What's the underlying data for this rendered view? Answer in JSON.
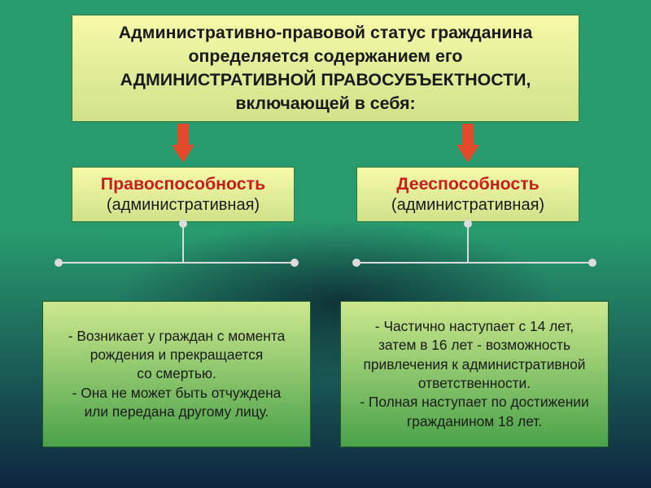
{
  "background": {
    "top_color": "#289a6e",
    "bottom_color": "#0e2640"
  },
  "top_box": {
    "line1": "Административно-правовой статус гражданина",
    "line2": "определяется содержанием его",
    "line3": "АДМИНИСТРАТИВНОЙ  ПРАВОСУБЪЕКТНОСТИ,",
    "line4": "включающей в себя:",
    "bg_gradient_from": "#f6f9a9",
    "bg_gradient_to": "#d0e28a",
    "border_color": "#2f7a3a",
    "text_color": "#1a1a1a",
    "font_size_pt": 16,
    "font_weight": "bold"
  },
  "arrows": {
    "color": "#e24a2a",
    "stem_height": 26,
    "head_height": 22
  },
  "mid_left": {
    "title": "Правоспособность",
    "subtitle": "(административная)",
    "bg_gradient_from": "#f6f9a9",
    "bg_gradient_to": "#d0e28a",
    "border_color": "#2f7a3a",
    "title_color": "#c81e1e",
    "subtitle_color": "#1a1a1a",
    "title_font_size_pt": 16,
    "title_font_weight": "bold",
    "subtitle_font_size_pt": 15
  },
  "mid_right": {
    "title": "Дееспособность",
    "subtitle": "(административная)",
    "bg_gradient_from": "#f6f9a9",
    "bg_gradient_to": "#d0e28a",
    "border_color": "#2f7a3a",
    "title_color": "#c81e1e",
    "subtitle_color": "#1a1a1a",
    "title_font_size_pt": 16,
    "title_font_weight": "bold",
    "subtitle_font_size_pt": 15
  },
  "connector": {
    "color": "#dcdcdc"
  },
  "bot_left": {
    "lines": [
      "-  Возникает у граждан с момента",
      "рождения и прекращается",
      "со смертью.",
      "-  Она не может быть отчуждена",
      "или передана другому лицу."
    ],
    "bg_gradient_from": "#cde88e",
    "bg_gradient_to": "#4aa24a",
    "border_color": "#1f5a2a",
    "text_color": "#1a1a1a",
    "font_size_pt": 13
  },
  "bot_right": {
    "lines": [
      "-  Частично наступает с 14 лет,",
      "затем в 16 лет - возможность",
      "привлечения к административной",
      "ответственности.",
      "-  Полная наступает по достижении",
      "гражданином 18 лет."
    ],
    "bg_gradient_from": "#cde88e",
    "bg_gradient_to": "#4aa24a",
    "border_color": "#1f5a2a",
    "text_color": "#1a1a1a",
    "font_size_pt": 13
  }
}
